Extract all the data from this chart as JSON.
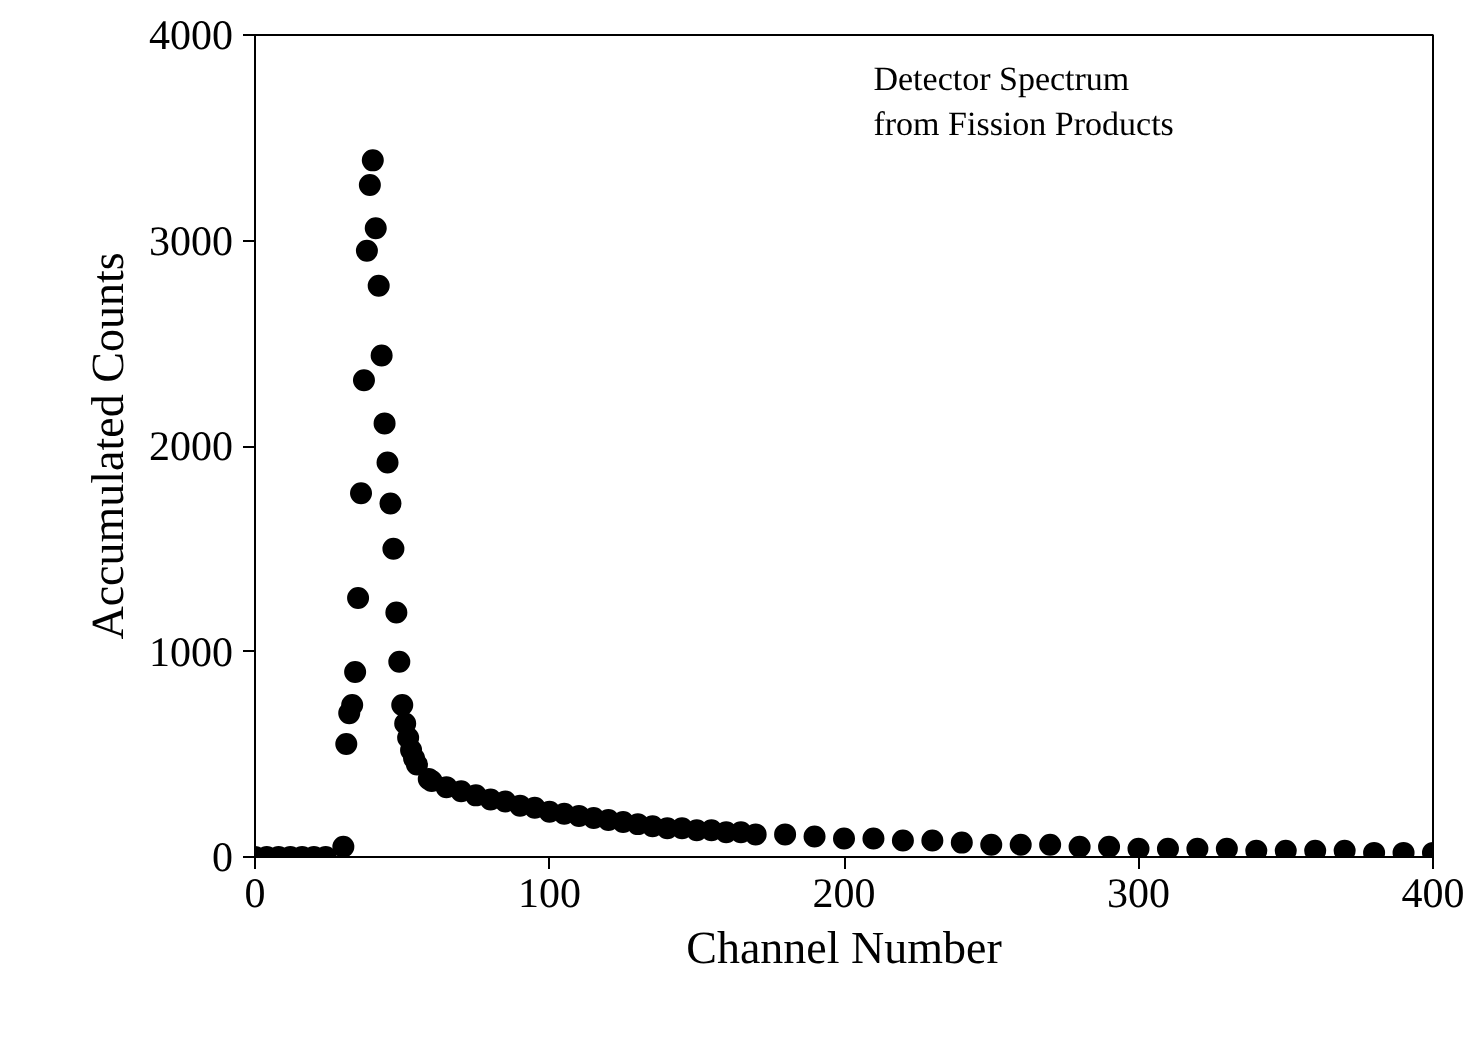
{
  "chart_data": {
    "type": "scatter",
    "xlabel": "Channel Number",
    "ylabel": "Accumulated Counts",
    "annotations": [
      "Detector Spectrum\nfrom Fission Products"
    ],
    "x": [
      0,
      4,
      8,
      12,
      16,
      20,
      24,
      30,
      31,
      32,
      33,
      34,
      35,
      36,
      37,
      38,
      39,
      40,
      41,
      42,
      43,
      44,
      45,
      46,
      47,
      48,
      49,
      50,
      51,
      52,
      53,
      54,
      55,
      59,
      60,
      65,
      70,
      75,
      80,
      85,
      90,
      95,
      100,
      105,
      110,
      115,
      120,
      125,
      130,
      135,
      140,
      145,
      150,
      155,
      160,
      165,
      170,
      180,
      190,
      200,
      210,
      220,
      230,
      240,
      250,
      260,
      270,
      280,
      290,
      300,
      310,
      320,
      330,
      340,
      350,
      360,
      370,
      380,
      390,
      400
    ],
    "series": [
      {
        "color": "#000000",
        "values": [
          0,
          0,
          0,
          0,
          0,
          0,
          0,
          50,
          550,
          700,
          740,
          900,
          1260,
          1770,
          2320,
          2950,
          3270,
          3390,
          3060,
          2780,
          2440,
          2110,
          1920,
          1720,
          1500,
          1190,
          950,
          740,
          650,
          580,
          520,
          480,
          450,
          380,
          370,
          340,
          320,
          300,
          280,
          270,
          250,
          240,
          220,
          210,
          200,
          190,
          180,
          170,
          160,
          150,
          140,
          140,
          130,
          130,
          120,
          120,
          110,
          110,
          100,
          90,
          90,
          80,
          80,
          70,
          60,
          60,
          60,
          50,
          50,
          40,
          40,
          40,
          40,
          30,
          30,
          30,
          30,
          20,
          20,
          20
        ]
      }
    ],
    "xlim": [
      0,
      400
    ],
    "ylim": [
      0,
      4000
    ],
    "xticks": [
      0,
      100,
      200,
      300,
      400
    ],
    "yticks": [
      0,
      1000,
      2000,
      3000,
      4000
    ],
    "grid": false,
    "marker": "circle"
  }
}
